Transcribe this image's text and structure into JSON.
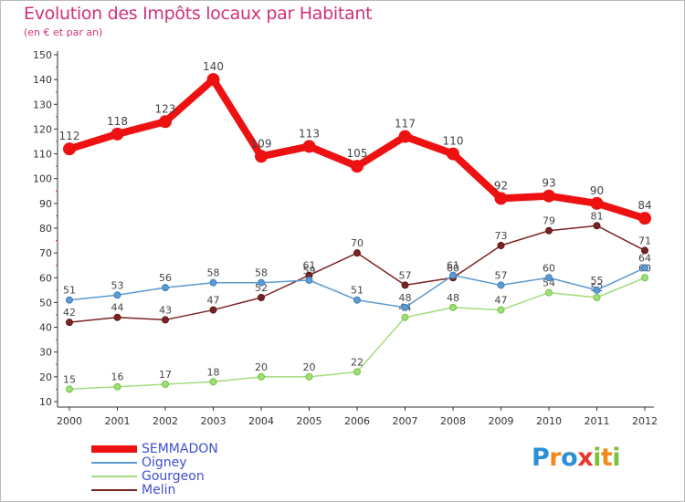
{
  "title": "Evolution des Impôts locaux par Habitant",
  "subtitle": "(en € et par an)",
  "logo": {
    "text": "Proxiti",
    "letters": [
      {
        "ch": "P",
        "color": "#2b8fd6"
      },
      {
        "ch": "r",
        "color": "#f08a1c"
      },
      {
        "ch": "o",
        "color": "#2b8fd6"
      },
      {
        "ch": "x",
        "color": "#e8362b"
      },
      {
        "ch": "i",
        "color": "#7cc13a"
      },
      {
        "ch": "t",
        "color": "#f08a1c"
      },
      {
        "ch": "i",
        "color": "#7cc13a"
      }
    ]
  },
  "chart_data": {
    "type": "line",
    "title": "Evolution des Impôts locaux par Habitant",
    "subtitle": "(en € et par an)",
    "x": [
      "2000",
      "2001",
      "2002",
      "2003",
      "2004",
      "2005",
      "2006",
      "2007",
      "2008",
      "2009",
      "2010",
      "2011",
      "2012"
    ],
    "ylim": [
      10,
      150
    ],
    "yticks": [
      "10",
      "20",
      "30",
      "40",
      "50",
      "60",
      "70",
      "80",
      "90",
      "100",
      "110",
      "120",
      "130",
      "140",
      "150"
    ],
    "grid": false,
    "legend_position": "bottom-left",
    "series": [
      {
        "name": "SEMMADON",
        "color": "#ee1111",
        "values": [
          112,
          118,
          123,
          140,
          109,
          113,
          105,
          117,
          110,
          92,
          93,
          90,
          84
        ],
        "labels": [
          "112",
          "118",
          "123",
          "140",
          "109",
          "113",
          "105",
          "117",
          "110",
          "92",
          "93",
          "90",
          "84"
        ]
      },
      {
        "name": "Oigney",
        "color": "#5c9bd1",
        "values": [
          51,
          53,
          56,
          58,
          58,
          59,
          51,
          48,
          61,
          57,
          60,
          55,
          64
        ],
        "labels": [
          "51",
          "53",
          "56",
          "58",
          "58",
          "59",
          "51",
          "48",
          "61",
          "57",
          "60",
          "55",
          "64"
        ]
      },
      {
        "name": "Gourgeon",
        "color": "#a3dc7c",
        "values": [
          15,
          16,
          17,
          18,
          20,
          20,
          22,
          44,
          48,
          47,
          54,
          52,
          60
        ],
        "labels": [
          "15",
          "16",
          "17",
          "18",
          "20",
          "20",
          "22",
          "44",
          "48",
          "47",
          "54",
          "52",
          "60"
        ]
      },
      {
        "name": "Melin",
        "color": "#7b2323",
        "values": [
          42,
          44,
          43,
          47,
          52,
          61,
          70,
          57,
          60,
          73,
          79,
          81,
          71
        ],
        "labels": [
          "42",
          "44",
          "43",
          "47",
          "52",
          "61",
          "70",
          "57",
          "60",
          "73",
          "79",
          "81",
          "71"
        ]
      }
    ]
  }
}
